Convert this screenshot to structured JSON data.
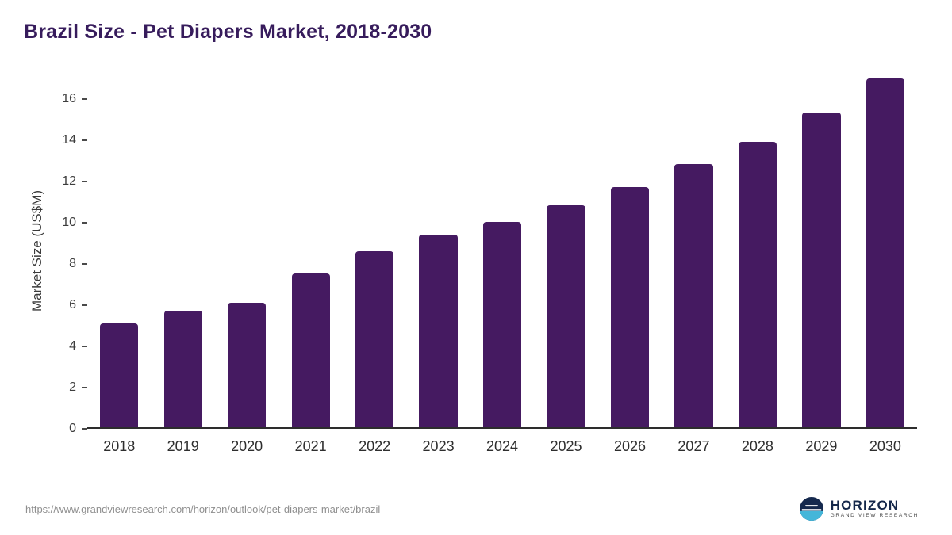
{
  "title": "Brazil Size - Pet Diapers Market, 2018-2030",
  "source_url": "https://www.grandviewresearch.com/horizon/outlook/pet-diapers-market/brazil",
  "logo": {
    "name": "HORIZON",
    "subtitle": "GRAND VIEW RESEARCH"
  },
  "colors": {
    "bar": "#451a61",
    "title": "#371c5c",
    "axis": "#2d2d2d",
    "logo_navy": "#15294e",
    "logo_teal": "#44b6d9"
  },
  "chart_data": {
    "type": "bar",
    "categories": [
      "2018",
      "2019",
      "2020",
      "2021",
      "2022",
      "2023",
      "2024",
      "2025",
      "2026",
      "2027",
      "2028",
      "2029",
      "2030"
    ],
    "values": [
      5.05,
      5.65,
      6.05,
      7.45,
      8.55,
      9.35,
      9.95,
      10.75,
      11.65,
      12.75,
      13.85,
      15.25,
      16.9
    ],
    "title": "Brazil Size - Pet Diapers Market, 2018-2030",
    "xlabel": "",
    "ylabel": "Market Size (US$M)",
    "ylim": [
      0,
      17.3
    ],
    "yticks": [
      0,
      2,
      4,
      6,
      8,
      10,
      12,
      14,
      16
    ],
    "grid": false,
    "legend": false,
    "bar_color": "#451a61"
  }
}
